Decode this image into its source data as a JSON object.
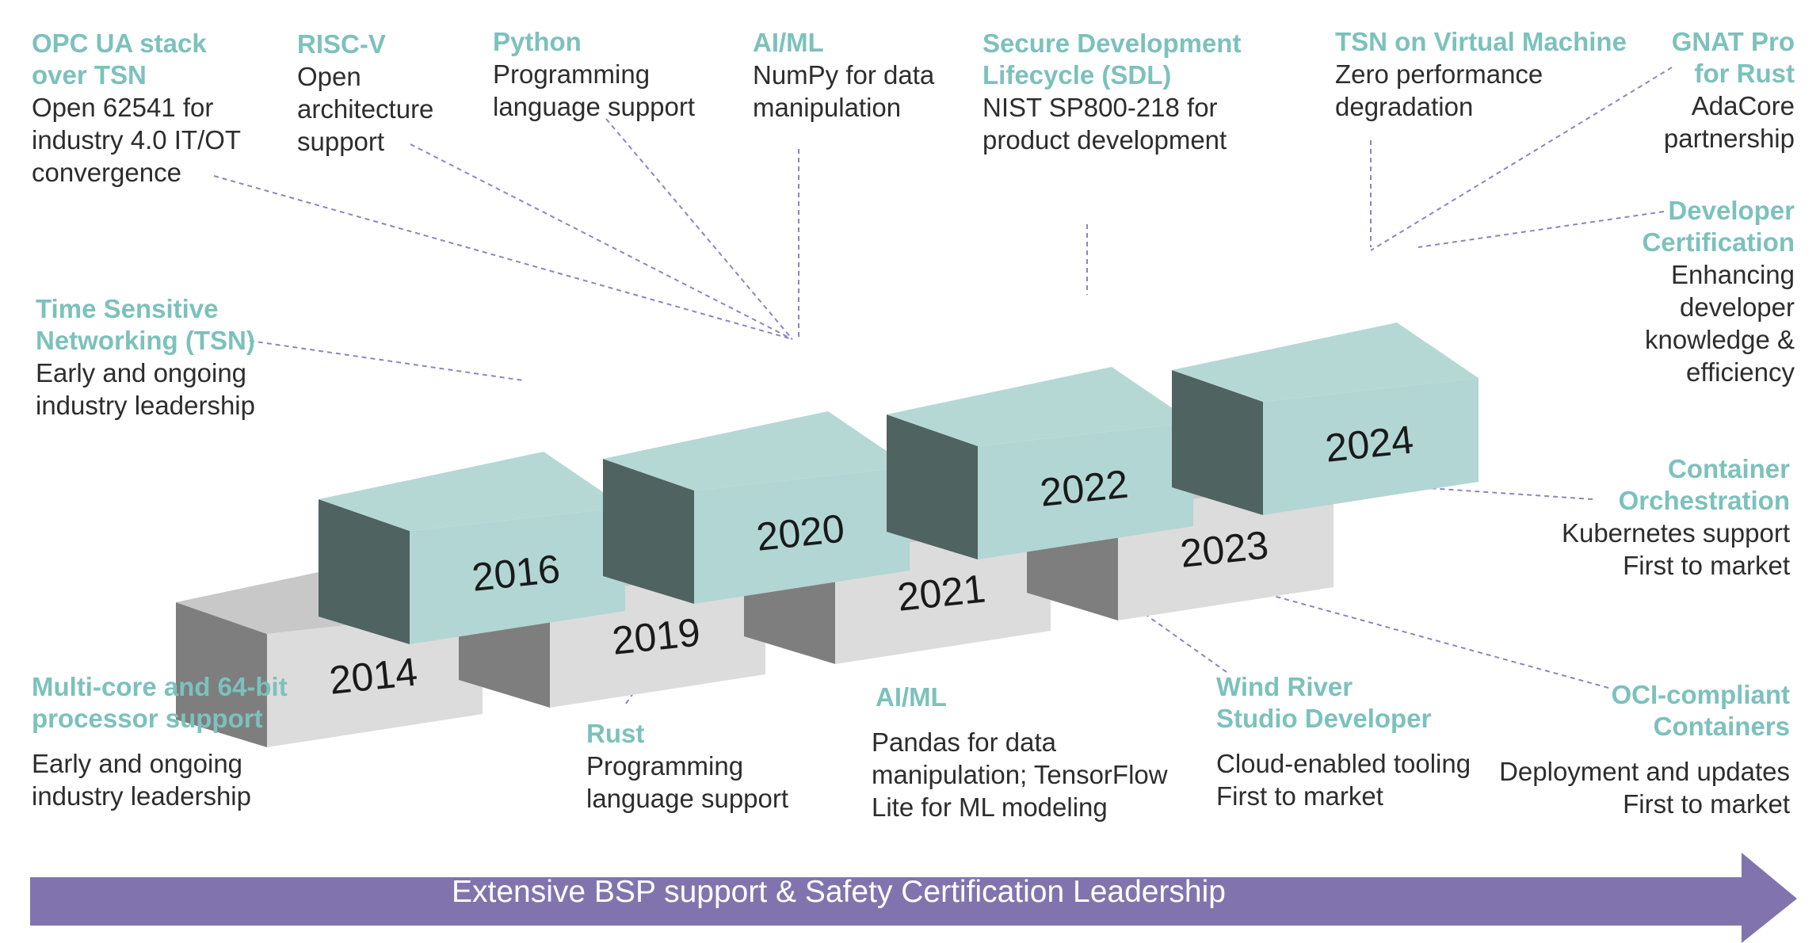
{
  "banner": "Extensive BSP support & Safety Certification Leadership",
  "colors": {
    "teal_top": "#b6d8d5",
    "teal_front": "#b2d6d4",
    "teal_side": "#4f6361",
    "gray_top": "#c8c8c8",
    "gray_front": "#dcdcdc",
    "gray_side": "#7e7e7e",
    "banner": "#8174ae",
    "title_text": "#7cc1bc",
    "line": "#8b86bf"
  },
  "years": [
    "2014",
    "2016",
    "2019",
    "2020",
    "2021",
    "2022",
    "2023",
    "2024"
  ],
  "annotations": {
    "opc": {
      "title1": "OPC UA stack",
      "title2": "over TSN",
      "d1": "Open 62541 for",
      "d2": "industry 4.0 IT/OT",
      "d3": "convergence"
    },
    "riscv": {
      "title": "RISC-V",
      "d1": "Open",
      "d2": "architecture",
      "d3": "support"
    },
    "python": {
      "title": "Python",
      "d1": "Programming",
      "d2": "language support"
    },
    "aiml_top": {
      "title": "AI/ML",
      "d1": "NumPy for data",
      "d2": "manipulation"
    },
    "sdl": {
      "title1": "Secure Development",
      "title2": "Lifecycle (SDL)",
      "d1": "NIST SP800-218 for",
      "d2": "product development"
    },
    "tsn_vm": {
      "title": "TSN on Virtual Machine",
      "d1": "Zero performance",
      "d2": "degradation"
    },
    "gnat": {
      "title1": "GNAT Pro",
      "title2": "for Rust",
      "d1": "AdaCore",
      "d2": "partnership"
    },
    "tsn": {
      "title1": "Time Sensitive",
      "title2": "Networking (TSN)",
      "d1": "Early and ongoing",
      "d2": "industry leadership"
    },
    "devcert": {
      "title1": "Developer",
      "title2": "Certification",
      "d1": "Enhancing",
      "d2": "developer",
      "d3": "knowledge &",
      "d4": "efficiency"
    },
    "container": {
      "title1": "Container",
      "title2": "Orchestration",
      "d1": "Kubernetes support",
      "d2": "First to market"
    },
    "multicore": {
      "title1": "Multi-core and 64-bit",
      "title2": "processor support",
      "d1": "Early and ongoing",
      "d2": "industry leadership"
    },
    "rust": {
      "title": "Rust",
      "d1": "Programming",
      "d2": "language support"
    },
    "aiml_bottom": {
      "title": "AI/ML",
      "d1": "Pandas for data",
      "d2": "manipulation; TensorFlow",
      "d3": "Lite for ML modeling"
    },
    "wrstudio": {
      "title1": "Wind River",
      "title2": "Studio Developer",
      "d1": "Cloud-enabled tooling",
      "d2": "First to market"
    },
    "oci": {
      "title1": "OCI-compliant",
      "title2": "Containers",
      "d1": "Deployment and updates",
      "d2": "First to market"
    }
  }
}
